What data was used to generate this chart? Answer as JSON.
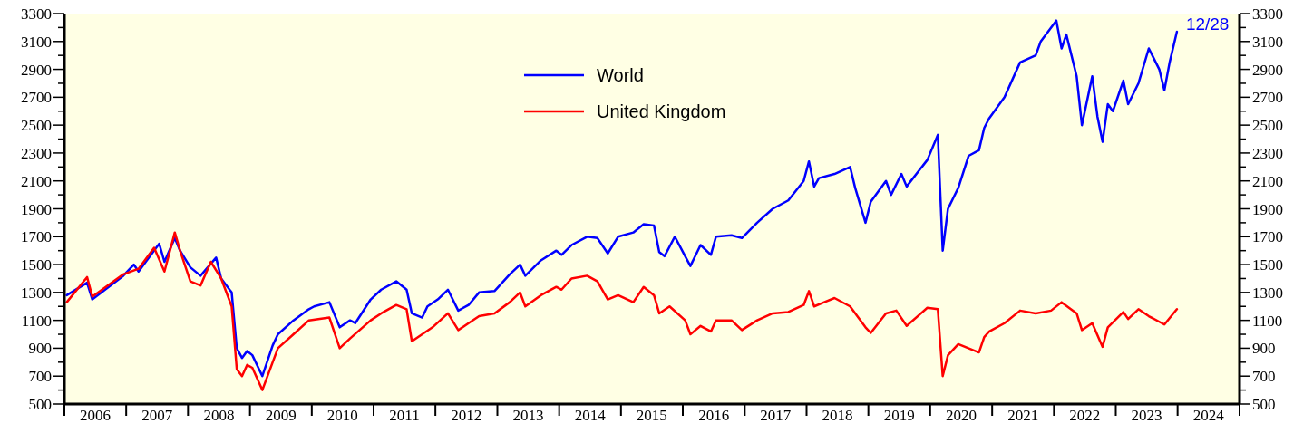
{
  "chart_data": {
    "type": "line",
    "xlim": [
      "2006-01-01",
      "2025-01-01"
    ],
    "xticks": [
      {
        "value": "2006-01-01",
        "label": null
      },
      {
        "value": "2006-07-02",
        "label": "2006"
      },
      {
        "value": "2007-01-01",
        "label": null
      },
      {
        "value": "2007-07-02",
        "label": "2007"
      },
      {
        "value": "2008-01-01",
        "label": null
      },
      {
        "value": "2008-07-02",
        "label": "2008"
      },
      {
        "value": "2009-01-01",
        "label": null
      },
      {
        "value": "2009-07-02",
        "label": "2009"
      },
      {
        "value": "2010-01-01",
        "label": null
      },
      {
        "value": "2010-07-02",
        "label": "2010"
      },
      {
        "value": "2011-01-01",
        "label": null
      },
      {
        "value": "2011-07-02",
        "label": "2011"
      },
      {
        "value": "2012-01-01",
        "label": null
      },
      {
        "value": "2012-07-02",
        "label": "2012"
      },
      {
        "value": "2013-01-01",
        "label": null
      },
      {
        "value": "2013-07-02",
        "label": "2013"
      },
      {
        "value": "2014-01-01",
        "label": null
      },
      {
        "value": "2014-07-02",
        "label": "2014"
      },
      {
        "value": "2015-01-01",
        "label": null
      },
      {
        "value": "2015-07-02",
        "label": "2015"
      },
      {
        "value": "2016-01-01",
        "label": null
      },
      {
        "value": "2016-07-02",
        "label": "2016"
      },
      {
        "value": "2017-01-01",
        "label": null
      },
      {
        "value": "2017-07-02",
        "label": "2017"
      },
      {
        "value": "2018-01-01",
        "label": null
      },
      {
        "value": "2018-07-02",
        "label": "2018"
      },
      {
        "value": "2019-01-01",
        "label": null
      },
      {
        "value": "2019-07-02",
        "label": "2019"
      },
      {
        "value": "2020-01-01",
        "label": null
      },
      {
        "value": "2020-07-02",
        "label": "2020"
      },
      {
        "value": "2021-01-01",
        "label": null
      },
      {
        "value": "2021-07-02",
        "label": "2021"
      },
      {
        "value": "2022-01-01",
        "label": null
      },
      {
        "value": "2022-07-02",
        "label": "2022"
      },
      {
        "value": "2023-01-01",
        "label": null
      },
      {
        "value": "2023-07-02",
        "label": "2023"
      },
      {
        "value": "2024-01-01",
        "label": null
      },
      {
        "value": "2024-07-02",
        "label": "2024"
      },
      {
        "value": "2025-01-01",
        "label": null
      }
    ],
    "ylim": [
      500,
      3300
    ],
    "yticks": [
      500,
      {
        "value": 600,
        "label": null
      },
      700,
      {
        "value": 800,
        "label": null
      },
      900,
      {
        "value": 1000,
        "label": null
      },
      1100,
      {
        "value": 1200,
        "label": null
      },
      1300,
      {
        "value": 1400,
        "label": null
      },
      1500,
      {
        "value": 1600,
        "label": null
      },
      1700,
      {
        "value": 1800,
        "label": null
      },
      1900,
      {
        "value": 2000,
        "label": null
      },
      2100,
      {
        "value": 2200,
        "label": null
      },
      2300,
      {
        "value": 2400,
        "label": null
      },
      2500,
      {
        "value": 2600,
        "label": null
      },
      2700,
      {
        "value": 2800,
        "label": null
      },
      2900,
      {
        "value": 3000,
        "label": null
      },
      3100,
      {
        "value": 3200,
        "label": null
      },
      3300
    ],
    "y2lim": [
      500,
      3300
    ],
    "y2ticks": [
      500,
      {
        "value": 600,
        "label": null
      },
      700,
      {
        "value": 800,
        "label": null
      },
      900,
      {
        "value": 1000,
        "label": null
      },
      1100,
      {
        "value": 1200,
        "label": null
      },
      1300,
      {
        "value": 1400,
        "label": null
      },
      1500,
      {
        "value": 1600,
        "label": null
      },
      1700,
      {
        "value": 1800,
        "label": null
      },
      1900,
      {
        "value": 2000,
        "label": null
      },
      2100,
      {
        "value": 2200,
        "label": null
      },
      2300,
      {
        "value": 2400,
        "label": null
      },
      2500,
      {
        "value": 2600,
        "label": null
      },
      2700,
      {
        "value": 2800,
        "label": null
      },
      2900,
      {
        "value": 3000,
        "label": null
      },
      3100,
      {
        "value": 3200,
        "label": null
      },
      3300
    ],
    "legend": "top",
    "annotations": [
      {
        "text": "12/28",
        "x": "2023-12-28",
        "y": 3170
      }
    ],
    "series": [
      {
        "name": "World",
        "color": "#0000ff",
        "x": [
          "2006-01",
          "2006-05",
          "2006-06",
          "2006-12",
          "2007-02",
          "2007-03",
          "2007-07",
          "2007-08",
          "2007-10",
          "2007-11",
          "2008-01",
          "2008-03",
          "2008-06",
          "2008-07",
          "2008-09",
          "2008-10",
          "2008-11",
          "2008-12",
          "2009-01",
          "2009-03",
          "2009-05",
          "2009-06",
          "2009-09",
          "2009-12",
          "2010-01",
          "2010-04",
          "2010-06",
          "2010-08",
          "2010-09",
          "2010-12",
          "2011-02",
          "2011-05",
          "2011-07",
          "2011-08",
          "2011-10",
          "2011-11",
          "2012-01",
          "2012-03",
          "2012-05",
          "2012-07",
          "2012-09",
          "2012-12",
          "2013-03",
          "2013-05",
          "2013-06",
          "2013-09",
          "2013-12",
          "2014-01",
          "2014-03",
          "2014-06",
          "2014-08",
          "2014-10",
          "2014-12",
          "2015-03",
          "2015-05",
          "2015-07",
          "2015-08",
          "2015-09",
          "2015-11",
          "2016-01",
          "2016-02",
          "2016-04",
          "2016-06",
          "2016-07",
          "2016-10",
          "2016-12",
          "2017-03",
          "2017-06",
          "2017-09",
          "2017-12",
          "2018-01",
          "2018-02",
          "2018-03",
          "2018-06",
          "2018-09",
          "2018-10",
          "2018-12",
          "2019-01",
          "2019-04",
          "2019-05",
          "2019-07",
          "2019-08",
          "2019-12",
          "2020-02",
          "2020-03",
          "2020-04",
          "2020-06",
          "2020-08",
          "2020-10",
          "2020-11",
          "2020-12",
          "2021-03",
          "2021-06",
          "2021-09",
          "2021-10",
          "2022-01",
          "2022-02",
          "2022-03",
          "2022-05",
          "2022-06",
          "2022-08",
          "2022-09",
          "2022-10",
          "2022-11",
          "2022-12",
          "2023-02",
          "2023-03",
          "2023-05",
          "2023-07",
          "2023-09",
          "2023-10",
          "2023-11",
          "2023-12-28"
        ],
        "values": [
          1280,
          1370,
          1250,
          1420,
          1500,
          1450,
          1650,
          1520,
          1690,
          1600,
          1480,
          1420,
          1550,
          1400,
          1300,
          900,
          830,
          880,
          850,
          700,
          920,
          1000,
          1100,
          1180,
          1200,
          1230,
          1050,
          1100,
          1080,
          1250,
          1320,
          1380,
          1320,
          1150,
          1120,
          1200,
          1250,
          1320,
          1170,
          1210,
          1300,
          1310,
          1430,
          1500,
          1420,
          1530,
          1600,
          1570,
          1640,
          1700,
          1690,
          1580,
          1700,
          1730,
          1790,
          1780,
          1590,
          1560,
          1700,
          1560,
          1490,
          1640,
          1570,
          1700,
          1710,
          1690,
          1800,
          1900,
          1960,
          2100,
          2240,
          2060,
          2120,
          2150,
          2200,
          2050,
          1800,
          1950,
          2100,
          2000,
          2150,
          2060,
          2250,
          2430,
          1600,
          1900,
          2050,
          2280,
          2320,
          2480,
          2550,
          2700,
          2950,
          3000,
          3100,
          3250,
          3050,
          3150,
          2850,
          2500,
          2850,
          2560,
          2380,
          2650,
          2600,
          2820,
          2650,
          2800,
          3050,
          2900,
          2750,
          2950,
          3170
        ]
      },
      {
        "name": "United Kingdom",
        "color": "#ff0000",
        "x": [
          "2006-01",
          "2006-05",
          "2006-06",
          "2006-12",
          "2007-03",
          "2007-06",
          "2007-08",
          "2007-10",
          "2007-11",
          "2008-01",
          "2008-03",
          "2008-05",
          "2008-07",
          "2008-09",
          "2008-10",
          "2008-11",
          "2008-12",
          "2009-01",
          "2009-03",
          "2009-05",
          "2009-06",
          "2009-09",
          "2009-12",
          "2010-04",
          "2010-06",
          "2010-08",
          "2010-12",
          "2011-02",
          "2011-05",
          "2011-07",
          "2011-08",
          "2011-10",
          "2011-12",
          "2012-03",
          "2012-05",
          "2012-07",
          "2012-09",
          "2012-12",
          "2013-03",
          "2013-05",
          "2013-06",
          "2013-09",
          "2013-12",
          "2014-01",
          "2014-03",
          "2014-06",
          "2014-08",
          "2014-10",
          "2014-12",
          "2015-03",
          "2015-05",
          "2015-07",
          "2015-08",
          "2015-10",
          "2016-01",
          "2016-02",
          "2016-04",
          "2016-06",
          "2016-07",
          "2016-10",
          "2016-12",
          "2017-03",
          "2017-06",
          "2017-09",
          "2017-12",
          "2018-01",
          "2018-02",
          "2018-04",
          "2018-06",
          "2018-09",
          "2018-12",
          "2019-01",
          "2019-04",
          "2019-06",
          "2019-08",
          "2019-12",
          "2020-02",
          "2020-03",
          "2020-04",
          "2020-06",
          "2020-10",
          "2020-11",
          "2020-12",
          "2021-03",
          "2021-06",
          "2021-09",
          "2021-12",
          "2022-02",
          "2022-05",
          "2022-06",
          "2022-08",
          "2022-10",
          "2022-11",
          "2023-02",
          "2023-03",
          "2023-05",
          "2023-07",
          "2023-10",
          "2023-12-28"
        ],
        "values": [
          1230,
          1410,
          1270,
          1430,
          1470,
          1620,
          1450,
          1730,
          1600,
          1380,
          1350,
          1520,
          1400,
          1200,
          750,
          700,
          780,
          760,
          600,
          800,
          900,
          1000,
          1100,
          1120,
          900,
          970,
          1100,
          1150,
          1210,
          1180,
          950,
          1000,
          1050,
          1150,
          1030,
          1080,
          1130,
          1150,
          1230,
          1300,
          1200,
          1280,
          1340,
          1320,
          1400,
          1420,
          1380,
          1250,
          1280,
          1230,
          1340,
          1280,
          1150,
          1200,
          1100,
          1000,
          1060,
          1020,
          1100,
          1100,
          1030,
          1100,
          1150,
          1160,
          1210,
          1310,
          1200,
          1230,
          1260,
          1200,
          1050,
          1010,
          1150,
          1170,
          1060,
          1190,
          1180,
          700,
          850,
          930,
          870,
          980,
          1020,
          1080,
          1170,
          1150,
          1170,
          1230,
          1150,
          1030,
          1080,
          910,
          1050,
          1160,
          1110,
          1180,
          1130,
          1070,
          1180
        ]
      }
    ]
  }
}
